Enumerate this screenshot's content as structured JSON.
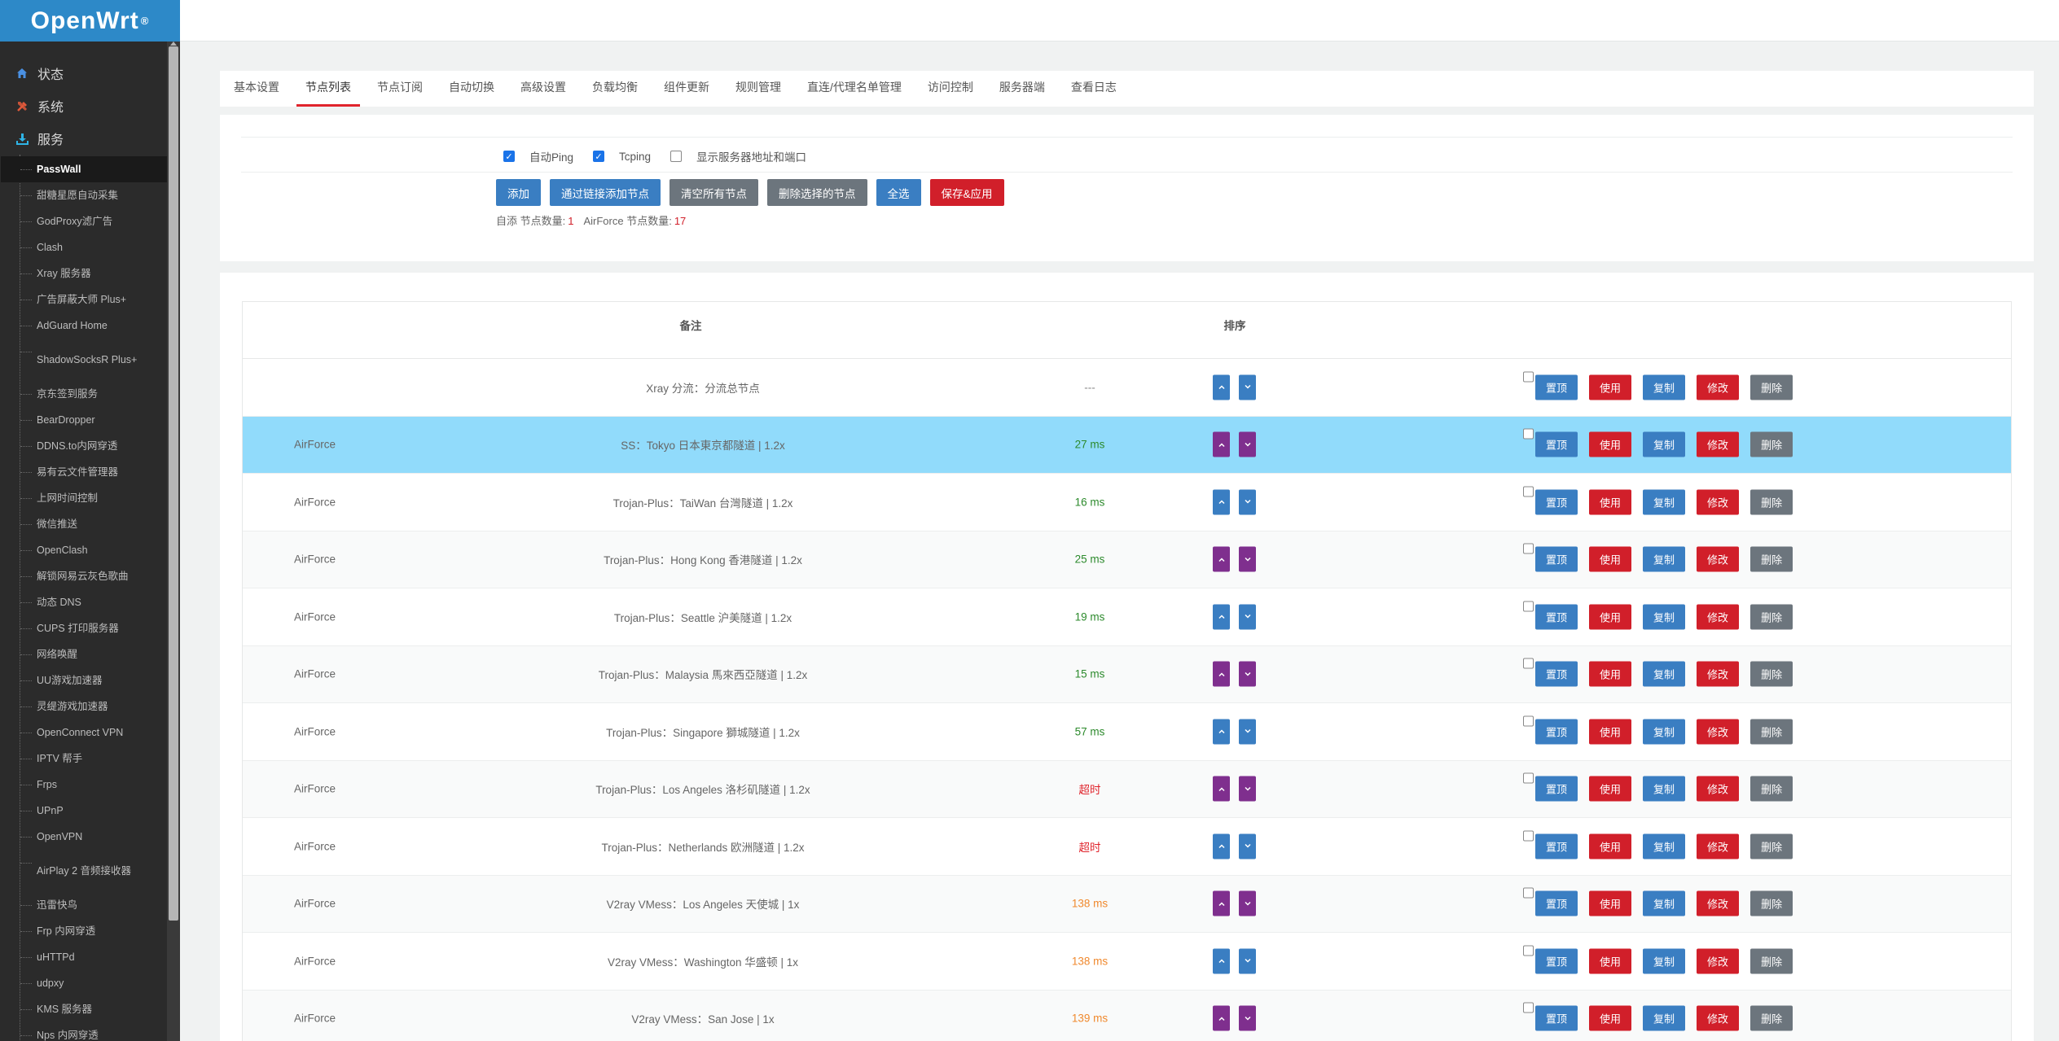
{
  "brand": {
    "name": "OpenWrt",
    "mark": "®"
  },
  "sidebar": {
    "top_items": [
      {
        "label": "状态",
        "icon": "home-icon"
      },
      {
        "label": "系统",
        "icon": "tools-icon"
      },
      {
        "label": "服务",
        "icon": "download-icon"
      }
    ],
    "services": [
      "PassWall",
      "甜糖星愿自动采集",
      "GodProxy滤广告",
      "Clash",
      "Xray 服务器",
      "广告屏蔽大师 Plus+",
      "AdGuard Home",
      "ShadowSocksR Plus+",
      "京东签到服务",
      "BearDropper",
      "DDNS.to内网穿透",
      "易有云文件管理器",
      "上网时间控制",
      "微信推送",
      "OpenClash",
      "解锁网易云灰色歌曲",
      "动态 DNS",
      "CUPS 打印服务器",
      "网络唤醒",
      "UU游戏加速器",
      "灵缇游戏加速器",
      "OpenConnect VPN",
      "IPTV 帮手",
      "Frps",
      "UPnP",
      "OpenVPN",
      "AirPlay 2 音频接收器",
      "迅雷快鸟",
      "Frp 内网穿透",
      "uHTTPd",
      "udpxy",
      "KMS 服务器",
      "Nps 内网穿透"
    ]
  },
  "tabs": [
    "基本设置",
    "节点列表",
    "节点订阅",
    "自动切换",
    "高级设置",
    "负载均衡",
    "组件更新",
    "规则管理",
    "直连/代理名单管理",
    "访问控制",
    "服务器端",
    "查看日志"
  ],
  "options": {
    "auto_ping": "自动Ping",
    "tcping": "Tcping",
    "show_addr": "显示服务器地址和端口"
  },
  "buttons": {
    "add": "添加",
    "add_by_link": "通过链接添加节点",
    "clear_all": "清空所有节点",
    "delete_selected": "删除选择的节点",
    "select_all": "全选",
    "save_apply": "保存&应用"
  },
  "counts": {
    "self_label": "自添 节点数量:",
    "self_count": "1",
    "airforce_label": "AirForce 节点数量:",
    "airforce_count": "17"
  },
  "table": {
    "headers": {
      "remark": "备注",
      "sort": "排序"
    },
    "action_labels": {
      "top": "置顶",
      "use": "使用",
      "copy": "复制",
      "edit": "修改",
      "delete": "删除"
    },
    "rows": [
      {
        "group": "",
        "remark": "Xray 分流：分流总节点",
        "ping": "---",
        "ping_status": "none"
      },
      {
        "group": "AirForce",
        "remark": "SS：Tokyo 日本東京都隧道 | 1.2x",
        "ping": "27 ms",
        "ping_status": "good"
      },
      {
        "group": "AirForce",
        "remark": "Trojan-Plus：TaiWan 台灣隧道 | 1.2x",
        "ping": "16 ms",
        "ping_status": "good"
      },
      {
        "group": "AirForce",
        "remark": "Trojan-Plus：Hong Kong 香港隧道 | 1.2x",
        "ping": "25 ms",
        "ping_status": "good"
      },
      {
        "group": "AirForce",
        "remark": "Trojan-Plus：Seattle 沪美隧道 | 1.2x",
        "ping": "19 ms",
        "ping_status": "good"
      },
      {
        "group": "AirForce",
        "remark": "Trojan-Plus：Malaysia 馬來西亞隧道 | 1.2x",
        "ping": "15 ms",
        "ping_status": "good"
      },
      {
        "group": "AirForce",
        "remark": "Trojan-Plus：Singapore 獅城隧道 | 1.2x",
        "ping": "57 ms",
        "ping_status": "good"
      },
      {
        "group": "AirForce",
        "remark": "Trojan-Plus：Los Angeles 洛杉矶隧道 | 1.2x",
        "ping": "超时",
        "ping_status": "bad"
      },
      {
        "group": "AirForce",
        "remark": "Trojan-Plus：Netherlands 欧洲隧道 | 1.2x",
        "ping": "超时",
        "ping_status": "bad"
      },
      {
        "group": "AirForce",
        "remark": "V2ray VMess：Los Angeles 天使城 | 1x",
        "ping": "138 ms",
        "ping_status": "warn"
      },
      {
        "group": "AirForce",
        "remark": "V2ray VMess：Washington 华盛顿 | 1x",
        "ping": "138 ms",
        "ping_status": "warn"
      },
      {
        "group": "AirForce",
        "remark": "V2ray VMess：San Jose | 1x",
        "ping": "139 ms",
        "ping_status": "warn"
      }
    ]
  },
  "colors": {
    "brand_blue": "#2d89c8",
    "primary_blue": "#3a7ec2",
    "danger_red": "#d11f2a",
    "secondary_gray": "#6c757d",
    "sort_purple": "#7f2f8e",
    "highlight_row": "#91dbfb",
    "ping_good": "#2c8a2c",
    "ping_warn": "#f0892e",
    "ping_bad": "#e0242c"
  }
}
